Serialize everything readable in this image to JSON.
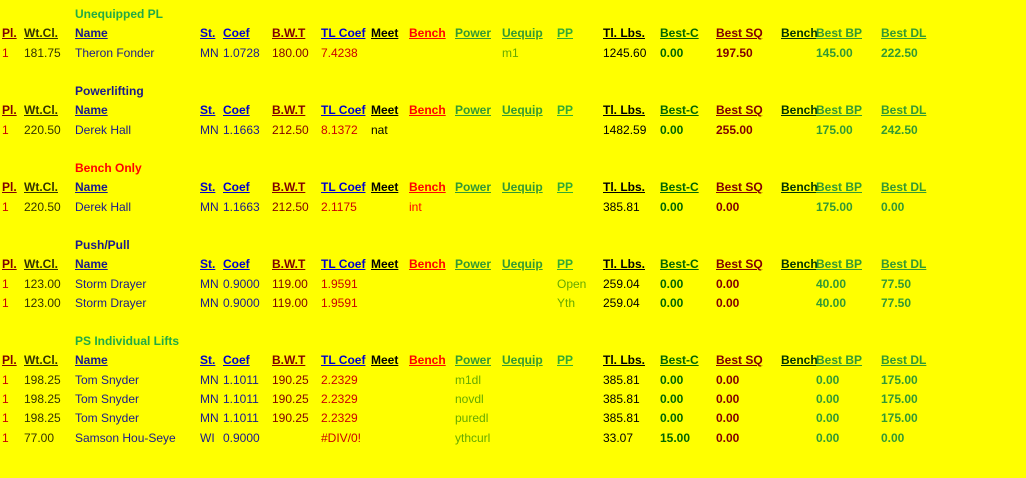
{
  "headers": [
    "Pl.",
    "Wt.Cl.",
    "Name",
    "St.",
    "Coef",
    "B.W.T",
    "TL Coef",
    "Meet",
    "Bench",
    "Power",
    "Uequip",
    "PP",
    "Tl. Lbs.",
    "Best-C",
    "Best SQ",
    "Bench",
    "Best BP",
    "Best DL"
  ],
  "sections": [
    {
      "title": "Unequipped PL",
      "title_color": "#22aa44",
      "rows": [
        [
          "1",
          "181.75",
          "Theron Fonder",
          "MN",
          "1.0728",
          "180.00",
          "7.4238",
          "",
          "",
          "",
          "m1",
          "",
          "1245.60",
          "0.00",
          "197.50",
          "",
          "145.00",
          "222.50"
        ]
      ]
    },
    {
      "title": "Powerlifting",
      "title_color": "#1a1a8c",
      "rows": [
        [
          "1",
          "220.50",
          "Derek Hall",
          "MN",
          "1.1663",
          "212.50",
          "8.1372",
          "nat",
          "",
          "",
          "",
          "",
          "1482.59",
          "0.00",
          "255.00",
          "",
          "175.00",
          "242.50"
        ]
      ]
    },
    {
      "title": "Bench Only",
      "title_color": "#ff0000",
      "rows": [
        [
          "1",
          "220.50",
          "Derek Hall",
          "MN",
          "1.1663",
          "212.50",
          "2.1175",
          "",
          "int",
          "",
          "",
          "",
          "385.81",
          "0.00",
          "0.00",
          "",
          "175.00",
          "0.00"
        ]
      ]
    },
    {
      "title": "Push/Pull",
      "title_color": "#1a1a8c",
      "rows": [
        [
          "1",
          "123.00",
          "Storm Drayer",
          "MN",
          "0.9000",
          "119.00",
          "1.9591",
          "",
          "",
          "",
          "",
          "Open",
          "259.04",
          "0.00",
          "0.00",
          "",
          "40.00",
          "77.50"
        ],
        [
          "1",
          "123.00",
          "Storm Drayer",
          "MN",
          "0.9000",
          "119.00",
          "1.9591",
          "",
          "",
          "",
          "",
          "Yth",
          "259.04",
          "0.00",
          "0.00",
          "",
          "40.00",
          "77.50"
        ]
      ]
    },
    {
      "title": "PS Individual Lifts",
      "title_color": "#22aa44",
      "rows": [
        [
          "1",
          "198.25",
          "Tom Snyder",
          "MN",
          "1.1011",
          "190.25",
          "2.2329",
          "",
          "",
          "m1dl",
          "",
          "",
          "385.81",
          "0.00",
          "0.00",
          "",
          "0.00",
          "175.00"
        ],
        [
          "1",
          "198.25",
          "Tom Snyder",
          "MN",
          "1.1011",
          "190.25",
          "2.2329",
          "",
          "",
          "novdl",
          "",
          "",
          "385.81",
          "0.00",
          "0.00",
          "",
          "0.00",
          "175.00"
        ],
        [
          "1",
          "198.25",
          "Tom Snyder",
          "MN",
          "1.1011",
          "190.25",
          "2.2329",
          "",
          "",
          "puredl",
          "",
          "",
          "385.81",
          "0.00",
          "0.00",
          "",
          "0.00",
          "175.00"
        ],
        [
          "1",
          "77.00",
          "Samson Hou-Seye",
          "WI",
          "0.9000",
          "",
          "#DIV/0!",
          "",
          "",
          "ythcurl",
          "",
          "",
          "33.07",
          "15.00",
          "0.00",
          "",
          "0.00",
          "0.00"
        ]
      ]
    }
  ],
  "colors": {
    "header": [
      "#800000",
      "#333300",
      "#1a1a8c",
      "#0000cc",
      "#0000cc",
      "#800000",
      "#0000cc",
      "#000000",
      "#ff0000",
      "#339933",
      "#339933",
      "#33aa33",
      "#000000",
      "#006600",
      "#800000",
      "#003300",
      "#339933",
      "#339933"
    ],
    "cell": [
      "#cc0000",
      "#333300",
      "#1a1a8c",
      "#1a1a8c",
      "#1a1a8c",
      "#800000",
      "#cc0000",
      "#000000",
      "#ff0000",
      "#66aa00",
      "#66aa00",
      "#66aa00",
      "#000000",
      "#006600",
      "#800000",
      "#003300",
      "#339933",
      "#339933"
    ]
  }
}
